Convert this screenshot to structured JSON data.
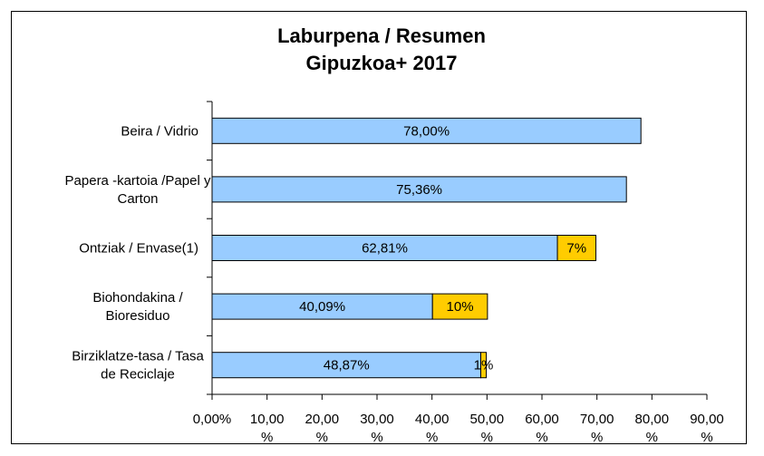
{
  "chart_data": {
    "type": "bar",
    "orientation": "horizontal",
    "stacked": true,
    "title": [
      "Laburpena / Resumen",
      "Gipuzkoa+ 2017"
    ],
    "xlabel": "",
    "ylabel": "",
    "xlim": [
      0,
      90
    ],
    "x_ticks": [
      [
        "0,00%"
      ],
      [
        "10,00",
        "%"
      ],
      [
        "20,00",
        "%"
      ],
      [
        "30,00",
        "%"
      ],
      [
        "40,00",
        "%"
      ],
      [
        "50,00",
        "%"
      ],
      [
        "60,00",
        "%"
      ],
      [
        "70,00",
        "%"
      ],
      [
        "80,00",
        "%"
      ],
      [
        "90,00",
        "%"
      ]
    ],
    "categories": [
      [
        "Beira / Vidrio"
      ],
      [
        "Papera -kartoia /Papel y",
        "Carton"
      ],
      [
        "Ontziak / Envase(1)"
      ],
      [
        "Biohondakina /",
        "Bioresiduo"
      ],
      [
        "Birziklatze-tasa / Tasa",
        "de Reciclaje"
      ]
    ],
    "series": [
      {
        "values": [
          78.0,
          75.36,
          62.81,
          40.09,
          48.87
        ],
        "labels": [
          "78,00%",
          "75,36%",
          "62,81%",
          "40,09%",
          "48,87%"
        ],
        "color": "#99ccff"
      },
      {
        "values": [
          0,
          0,
          7,
          10,
          1
        ],
        "labels": [
          "",
          "",
          "7%",
          "10%",
          "1%"
        ],
        "color": "#ffcc00"
      }
    ],
    "grid": false,
    "legend": "none"
  }
}
